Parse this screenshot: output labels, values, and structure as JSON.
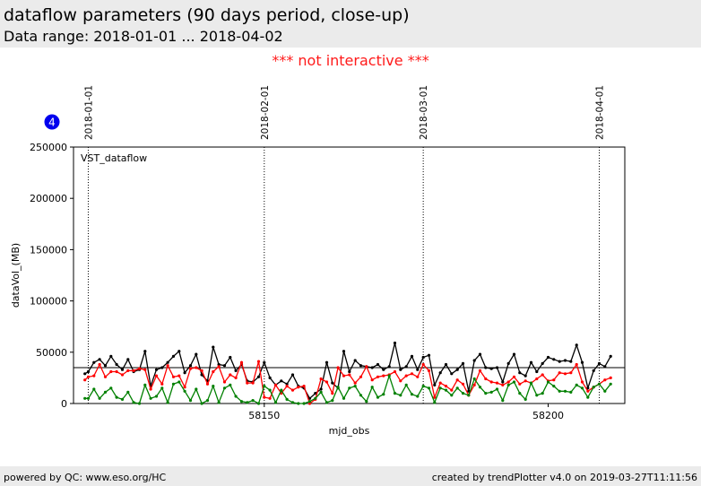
{
  "header": {
    "title": "dataflow parameters (90 days period, close-up)",
    "subtitle": "Data range: 2018-01-01 ... 2018-04-02"
  },
  "notice": "*** not interactive ***",
  "footer": {
    "left": "powered by QC: www.eso.org/HC",
    "right": "created by trendPlotter v4.0 on 2019-03-27T11:11:56"
  },
  "badge": {
    "label": "4",
    "color": "#0000ee"
  },
  "chart_data": {
    "type": "line",
    "xlabel": "mjd_obs",
    "ylabel": "dataVol_(MB)",
    "xlim": [
      58116.4,
      58213.5
    ],
    "ylim": [
      0,
      250000
    ],
    "xticks": [
      58150,
      58200
    ],
    "yticks": [
      0,
      50000,
      100000,
      150000,
      200000,
      250000
    ],
    "annotation": "VST_dataflow",
    "reference_line": {
      "y": 35000,
      "color": "#000000"
    },
    "date_markers": [
      {
        "x": 58119.0,
        "label": "2018-01-01"
      },
      {
        "x": 58150.0,
        "label": "2018-02-01"
      },
      {
        "x": 58178.0,
        "label": "2018-03-01"
      },
      {
        "x": 58209.0,
        "label": "2018-04-01"
      }
    ],
    "series": [
      {
        "color": "#000000",
        "points": [
          [
            58118.4,
            29000
          ],
          [
            58119,
            31000
          ],
          [
            58120,
            40000
          ],
          [
            58121,
            43000
          ],
          [
            58122,
            37000
          ],
          [
            58123,
            46000
          ],
          [
            58124,
            38000
          ],
          [
            58125,
            33000
          ],
          [
            58126,
            43000
          ],
          [
            58127,
            31000
          ],
          [
            58128,
            33000
          ],
          [
            58129,
            51000
          ],
          [
            58130,
            17000
          ],
          [
            58131,
            33000
          ],
          [
            58132,
            35000
          ],
          [
            58133,
            40000
          ],
          [
            58134,
            46000
          ],
          [
            58135,
            51000
          ],
          [
            58136,
            30000
          ],
          [
            58137,
            37000
          ],
          [
            58138,
            48000
          ],
          [
            58139,
            28000
          ],
          [
            58140,
            22000
          ],
          [
            58141,
            55000
          ],
          [
            58142,
            38000
          ],
          [
            58143,
            37000
          ],
          [
            58144,
            45000
          ],
          [
            58145,
            32000
          ],
          [
            58146,
            38000
          ],
          [
            58147,
            22000
          ],
          [
            58148,
            21000
          ],
          [
            58149,
            26000
          ],
          [
            58150,
            40000
          ],
          [
            58151,
            25000
          ],
          [
            58152,
            18000
          ],
          [
            58153,
            22000
          ],
          [
            58154,
            19000
          ],
          [
            58155,
            28000
          ],
          [
            58156,
            17000
          ],
          [
            58157,
            15000
          ],
          [
            58158,
            5000
          ],
          [
            58159,
            10000
          ],
          [
            58160,
            14000
          ],
          [
            58161,
            40000
          ],
          [
            58162,
            20000
          ],
          [
            58163,
            15000
          ],
          [
            58164,
            51000
          ],
          [
            58165,
            31000
          ],
          [
            58166,
            42000
          ],
          [
            58167,
            37000
          ],
          [
            58168,
            36000
          ],
          [
            58169,
            35000
          ],
          [
            58170,
            38000
          ],
          [
            58171,
            33000
          ],
          [
            58172,
            36000
          ],
          [
            58173,
            59000
          ],
          [
            58174,
            33000
          ],
          [
            58175,
            36000
          ],
          [
            58176,
            46000
          ],
          [
            58177,
            33000
          ],
          [
            58178,
            45000
          ],
          [
            58179,
            47000
          ],
          [
            58180,
            18000
          ],
          [
            58181,
            30000
          ],
          [
            58182,
            38000
          ],
          [
            58183,
            29000
          ],
          [
            58184,
            33000
          ],
          [
            58185,
            39000
          ],
          [
            58186,
            12000
          ],
          [
            58187,
            42000
          ],
          [
            58188,
            48000
          ],
          [
            58189,
            35000
          ],
          [
            58190,
            34000
          ],
          [
            58191,
            35000
          ],
          [
            58192,
            21000
          ],
          [
            58193,
            39000
          ],
          [
            58194,
            48000
          ],
          [
            58195,
            30000
          ],
          [
            58196,
            27000
          ],
          [
            58197,
            40000
          ],
          [
            58198,
            31000
          ],
          [
            58199,
            39000
          ],
          [
            58200,
            45000
          ],
          [
            58201,
            43000
          ],
          [
            58202,
            41000
          ],
          [
            58203,
            42000
          ],
          [
            58204,
            41000
          ],
          [
            58205,
            57000
          ],
          [
            58206,
            40000
          ],
          [
            58207,
            15000
          ],
          [
            58208,
            32000
          ],
          [
            58209,
            39000
          ],
          [
            58210,
            36000
          ],
          [
            58211,
            46000
          ]
        ]
      },
      {
        "color": "#ff0000",
        "points": [
          [
            58118.4,
            23000
          ],
          [
            58119,
            26000
          ],
          [
            58120,
            27000
          ],
          [
            58121,
            38000
          ],
          [
            58122,
            26000
          ],
          [
            58123,
            31000
          ],
          [
            58124,
            31000
          ],
          [
            58125,
            28000
          ],
          [
            58126,
            32000
          ],
          [
            58127,
            32000
          ],
          [
            58128,
            34000
          ],
          [
            58129,
            33000
          ],
          [
            58130,
            14000
          ],
          [
            58131,
            27000
          ],
          [
            58132,
            19000
          ],
          [
            58133,
            37000
          ],
          [
            58134,
            26000
          ],
          [
            58135,
            27000
          ],
          [
            58136,
            16000
          ],
          [
            58137,
            34000
          ],
          [
            58138,
            35000
          ],
          [
            58139,
            32000
          ],
          [
            58140,
            19000
          ],
          [
            58141,
            31000
          ],
          [
            58142,
            36000
          ],
          [
            58143,
            21000
          ],
          [
            58144,
            28000
          ],
          [
            58145,
            25000
          ],
          [
            58146,
            40000
          ],
          [
            58147,
            20000
          ],
          [
            58148,
            20000
          ],
          [
            58149,
            41000
          ],
          [
            58150,
            6000
          ],
          [
            58151,
            5000
          ],
          [
            58152,
            18000
          ],
          [
            58153,
            10000
          ],
          [
            58154,
            17000
          ],
          [
            58155,
            13000
          ],
          [
            58156,
            16000
          ],
          [
            58157,
            17000
          ],
          [
            58158,
            0
          ],
          [
            58159,
            4000
          ],
          [
            58160,
            24000
          ],
          [
            58161,
            21000
          ],
          [
            58162,
            10000
          ],
          [
            58163,
            35000
          ],
          [
            58164,
            27000
          ],
          [
            58165,
            28000
          ],
          [
            58166,
            20000
          ],
          [
            58167,
            26000
          ],
          [
            58168,
            36000
          ],
          [
            58169,
            23000
          ],
          [
            58170,
            26000
          ],
          [
            58171,
            27000
          ],
          [
            58172,
            28000
          ],
          [
            58173,
            31000
          ],
          [
            58174,
            22000
          ],
          [
            58175,
            27000
          ],
          [
            58176,
            29000
          ],
          [
            58177,
            26000
          ],
          [
            58178,
            38000
          ],
          [
            58179,
            32000
          ],
          [
            58180,
            6000
          ],
          [
            58181,
            20000
          ],
          [
            58182,
            17000
          ],
          [
            58183,
            13000
          ],
          [
            58184,
            23000
          ],
          [
            58185,
            19000
          ],
          [
            58186,
            8000
          ],
          [
            58187,
            18000
          ],
          [
            58188,
            32000
          ],
          [
            58189,
            24000
          ],
          [
            58190,
            21000
          ],
          [
            58191,
            20000
          ],
          [
            58192,
            18000
          ],
          [
            58193,
            21000
          ],
          [
            58194,
            26000
          ],
          [
            58195,
            19000
          ],
          [
            58196,
            22000
          ],
          [
            58197,
            20000
          ],
          [
            58198,
            24000
          ],
          [
            58199,
            28000
          ],
          [
            58200,
            22000
          ],
          [
            58201,
            23000
          ],
          [
            58202,
            30000
          ],
          [
            58203,
            29000
          ],
          [
            58204,
            30000
          ],
          [
            58205,
            38000
          ],
          [
            58206,
            21000
          ],
          [
            58207,
            12000
          ],
          [
            58208,
            16000
          ],
          [
            58209,
            19000
          ],
          [
            58210,
            23000
          ],
          [
            58211,
            25000
          ]
        ]
      },
      {
        "color": "#008000",
        "points": [
          [
            58118.4,
            5000
          ],
          [
            58119,
            5000
          ],
          [
            58120,
            14000
          ],
          [
            58121,
            5000
          ],
          [
            58122,
            11000
          ],
          [
            58123,
            15000
          ],
          [
            58124,
            6000
          ],
          [
            58125,
            4000
          ],
          [
            58126,
            11000
          ],
          [
            58127,
            1000
          ],
          [
            58128,
            0
          ],
          [
            58129,
            18000
          ],
          [
            58130,
            5000
          ],
          [
            58131,
            7000
          ],
          [
            58132,
            15000
          ],
          [
            58133,
            1000
          ],
          [
            58134,
            19000
          ],
          [
            58135,
            21000
          ],
          [
            58136,
            12000
          ],
          [
            58137,
            3000
          ],
          [
            58138,
            14000
          ],
          [
            58139,
            0
          ],
          [
            58140,
            3000
          ],
          [
            58141,
            17000
          ],
          [
            58142,
            1000
          ],
          [
            58143,
            15000
          ],
          [
            58144,
            18000
          ],
          [
            58145,
            7000
          ],
          [
            58146,
            2000
          ],
          [
            58147,
            1000
          ],
          [
            58148,
            3000
          ],
          [
            58149,
            0
          ],
          [
            58150,
            17000
          ],
          [
            58151,
            13000
          ],
          [
            58152,
            1000
          ],
          [
            58153,
            13000
          ],
          [
            58154,
            4000
          ],
          [
            58155,
            1000
          ],
          [
            58156,
            0
          ],
          [
            58157,
            0
          ],
          [
            58158,
            2000
          ],
          [
            58159,
            5000
          ],
          [
            58160,
            11000
          ],
          [
            58161,
            1000
          ],
          [
            58162,
            3000
          ],
          [
            58163,
            16000
          ],
          [
            58164,
            5000
          ],
          [
            58165,
            15000
          ],
          [
            58166,
            17000
          ],
          [
            58167,
            8000
          ],
          [
            58168,
            2000
          ],
          [
            58169,
            16000
          ],
          [
            58170,
            6000
          ],
          [
            58171,
            9000
          ],
          [
            58172,
            27000
          ],
          [
            58173,
            10000
          ],
          [
            58174,
            8000
          ],
          [
            58175,
            18000
          ],
          [
            58176,
            9000
          ],
          [
            58177,
            7000
          ],
          [
            58178,
            17000
          ],
          [
            58179,
            15000
          ],
          [
            58180,
            1000
          ],
          [
            58181,
            15000
          ],
          [
            58182,
            13000
          ],
          [
            58183,
            8000
          ],
          [
            58184,
            15000
          ],
          [
            58185,
            10000
          ],
          [
            58186,
            8000
          ],
          [
            58187,
            24000
          ],
          [
            58188,
            16000
          ],
          [
            58189,
            10000
          ],
          [
            58190,
            11000
          ],
          [
            58191,
            14000
          ],
          [
            58192,
            3000
          ],
          [
            58193,
            18000
          ],
          [
            58194,
            21000
          ],
          [
            58195,
            10000
          ],
          [
            58196,
            4000
          ],
          [
            58197,
            20000
          ],
          [
            58198,
            8000
          ],
          [
            58199,
            10000
          ],
          [
            58200,
            21000
          ],
          [
            58201,
            17000
          ],
          [
            58202,
            12000
          ],
          [
            58203,
            12000
          ],
          [
            58204,
            11000
          ],
          [
            58205,
            18000
          ],
          [
            58206,
            15000
          ],
          [
            58207,
            6000
          ],
          [
            58208,
            16000
          ],
          [
            58209,
            19000
          ],
          [
            58210,
            12000
          ],
          [
            58211,
            19000
          ]
        ]
      }
    ]
  }
}
